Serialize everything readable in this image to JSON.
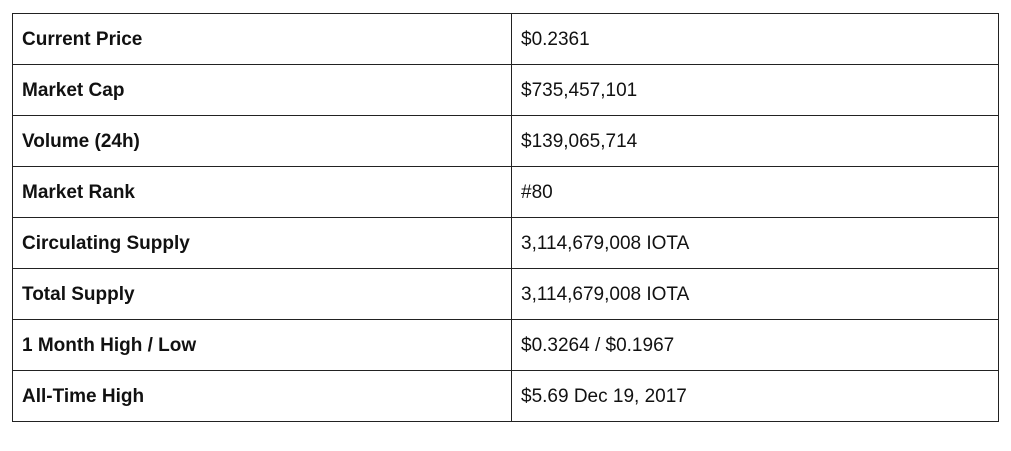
{
  "stats_table": {
    "rows": [
      {
        "label": "Current Price",
        "value": "$0.2361"
      },
      {
        "label": "Market Cap",
        "value": "$735,457,101"
      },
      {
        "label": "Volume (24h)",
        "value": "$139,065,714"
      },
      {
        "label": "Market Rank",
        "value": "#80"
      },
      {
        "label": "Circulating Supply",
        "value": "3,114,679,008 IOTA"
      },
      {
        "label": "Total Supply",
        "value": "3,114,679,008 IOTA"
      },
      {
        "label": "1 Month High / Low",
        "value": "$0.3264 / $0.1967"
      },
      {
        "label": "All-Time High",
        "value": "$5.69 Dec 19, 2017"
      }
    ]
  }
}
